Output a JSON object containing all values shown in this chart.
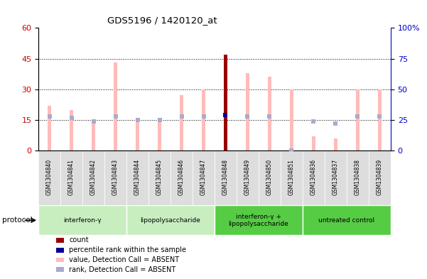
{
  "title": "GDS5196 / 1420120_at",
  "samples": [
    "GSM1304840",
    "GSM1304841",
    "GSM1304842",
    "GSM1304843",
    "GSM1304844",
    "GSM1304845",
    "GSM1304846",
    "GSM1304847",
    "GSM1304848",
    "GSM1304849",
    "GSM1304850",
    "GSM1304851",
    "GSM1304836",
    "GSM1304837",
    "GSM1304838",
    "GSM1304839"
  ],
  "value_absent": [
    22,
    20,
    14,
    43,
    14,
    15,
    27,
    30,
    0,
    38,
    36,
    30,
    7,
    6,
    30,
    30
  ],
  "rank_absent_pct": [
    28,
    27,
    24,
    28,
    25,
    25,
    28,
    28,
    0,
    28,
    28,
    0,
    24,
    22,
    28,
    28
  ],
  "count": [
    0,
    0,
    0,
    0,
    0,
    0,
    0,
    0,
    47,
    0,
    0,
    0,
    0,
    0,
    0,
    0
  ],
  "percentile": [
    0,
    0,
    0,
    0,
    0,
    0,
    0,
    0,
    29,
    0,
    0,
    0,
    0,
    0,
    0,
    0
  ],
  "protocols": [
    {
      "label": "interferon-γ",
      "start": 0,
      "end": 4,
      "color": "#c8eec0"
    },
    {
      "label": "lipopolysaccharide",
      "start": 4,
      "end": 8,
      "color": "#c8eec0"
    },
    {
      "label": "interferon-γ +\nlipopolysaccharide",
      "start": 8,
      "end": 12,
      "color": "#66cc55"
    },
    {
      "label": "untreated control",
      "start": 12,
      "end": 16,
      "color": "#66cc55"
    }
  ],
  "ylim_left": [
    0,
    60
  ],
  "ylim_right": [
    0,
    100
  ],
  "yticks_left": [
    0,
    15,
    30,
    45,
    60
  ],
  "yticks_right": [
    0,
    25,
    50,
    75,
    100
  ],
  "color_value_absent": "#ffbbbb",
  "color_rank_absent": "#aaaacc",
  "color_count": "#990000",
  "color_percentile": "#000099",
  "color_left_axis": "#cc0000",
  "color_right_axis": "#0000cc",
  "thin_bar_width": 0.15,
  "marker_size": 4
}
